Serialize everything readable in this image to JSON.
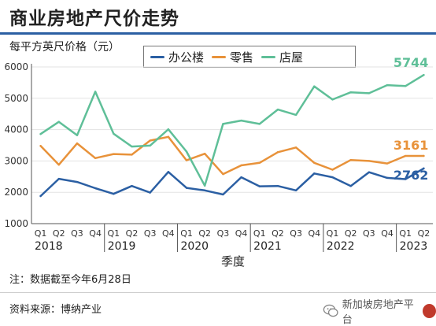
{
  "title": "商业房地产尺价走势",
  "note": "注：数据截至今年6月28日",
  "source": "资料来源：博纳产业",
  "watermark_text": "新加坡房地产平台",
  "colors": {
    "title_bar": "#2b5fa3",
    "office": "#2b5fa3",
    "retail": "#e8923a",
    "shop": "#5fbf98"
  },
  "chart_data": {
    "type": "line",
    "ylabel": "每平方英尺价格（元）",
    "xlabel": "季度",
    "ylim": [
      1000,
      6000
    ],
    "yticks": [
      1000,
      2000,
      3000,
      4000,
      5000,
      6000
    ],
    "categories": [
      "Q1",
      "Q2",
      "Q3",
      "Q4",
      "Q1",
      "Q2",
      "Q3",
      "Q4",
      "Q1",
      "Q2",
      "Q3",
      "Q4",
      "Q1",
      "Q2",
      "Q3",
      "Q4",
      "Q1",
      "Q2",
      "Q3",
      "Q4",
      "Q1",
      "Q2"
    ],
    "years": [
      {
        "label": "2018",
        "start": 0,
        "end": 3
      },
      {
        "label": "2019",
        "start": 4,
        "end": 7
      },
      {
        "label": "2020",
        "start": 8,
        "end": 11
      },
      {
        "label": "2021",
        "start": 12,
        "end": 15
      },
      {
        "label": "2022",
        "start": 16,
        "end": 19
      },
      {
        "label": "2023",
        "start": 20,
        "end": 21
      }
    ],
    "series": [
      {
        "name": "办公楼",
        "color": "#2b5fa3",
        "end_label": "2762",
        "values": [
          1880,
          2430,
          2330,
          2130,
          1950,
          2200,
          1990,
          2650,
          2140,
          2060,
          1930,
          2480,
          2190,
          2200,
          2060,
          2600,
          2480,
          2200,
          2640,
          2460,
          2420,
          2762
        ]
      },
      {
        "name": "零售",
        "color": "#e8923a",
        "end_label": "3161",
        "values": [
          3480,
          2880,
          3560,
          3090,
          3220,
          3200,
          3650,
          3770,
          3020,
          3230,
          2580,
          2860,
          2940,
          3280,
          3430,
          2940,
          2720,
          3030,
          3000,
          2920,
          3160,
          3161
        ]
      },
      {
        "name": "店屋",
        "color": "#5fbf98",
        "end_label": "5744",
        "values": [
          3860,
          4250,
          3820,
          5210,
          3870,
          3460,
          3490,
          4010,
          3300,
          2210,
          4180,
          4290,
          4180,
          4640,
          4470,
          5380,
          4960,
          5190,
          5160,
          5420,
          5390,
          5744
        ]
      }
    ]
  }
}
